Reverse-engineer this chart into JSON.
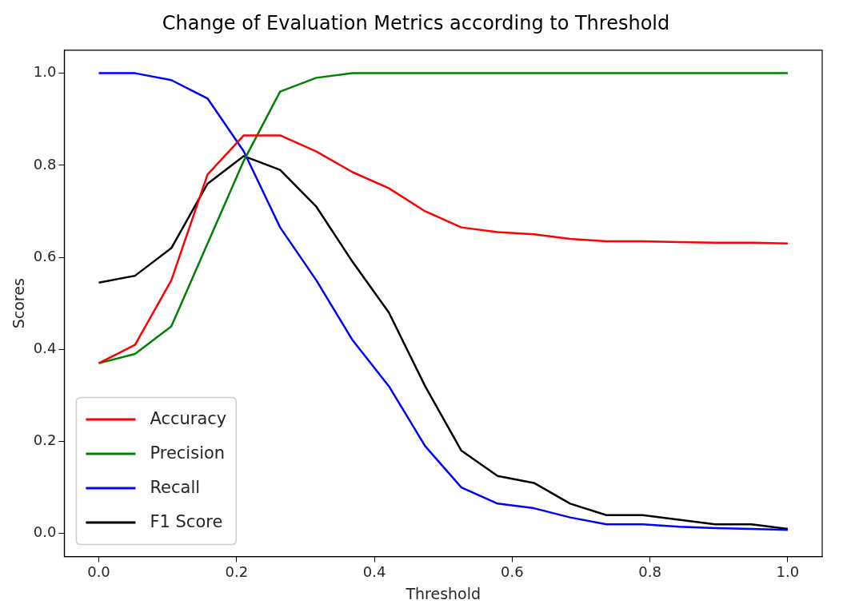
{
  "chart_data": {
    "type": "line",
    "title": "Change of Evaluation Metrics according to Threshold",
    "xlabel": "Threshold",
    "ylabel": "Scores",
    "x": [
      0,
      0.0526,
      0.1053,
      0.1579,
      0.2105,
      0.2632,
      0.3158,
      0.3684,
      0.4211,
      0.4737,
      0.5263,
      0.5789,
      0.6316,
      0.6842,
      0.7368,
      0.7895,
      0.8421,
      0.8947,
      0.9474,
      1
    ],
    "series": [
      {
        "name": "Accuracy",
        "color": "#ff0000",
        "values": [
          0.37,
          0.41,
          0.55,
          0.78,
          0.865,
          0.865,
          0.83,
          0.785,
          0.75,
          0.7,
          0.665,
          0.655,
          0.65,
          0.64,
          0.635,
          0.635,
          0.633,
          0.632,
          0.632,
          0.63
        ]
      },
      {
        "name": "Precision",
        "color": "#008000",
        "values": [
          0.37,
          0.39,
          0.45,
          0.63,
          0.81,
          0.96,
          0.99,
          1,
          1,
          1,
          1,
          1,
          1,
          1,
          1,
          1,
          1,
          1,
          1,
          1
        ]
      },
      {
        "name": "Recall",
        "color": "#0000ff",
        "values": [
          1,
          1,
          0.985,
          0.945,
          0.83,
          0.665,
          0.55,
          0.42,
          0.32,
          0.19,
          0.1,
          0.065,
          0.055,
          0.035,
          0.02,
          0.02,
          0.015,
          0.012,
          0.01,
          0.008
        ]
      },
      {
        "name": "F1 Score",
        "color": "#000000",
        "values": [
          0.545,
          0.56,
          0.62,
          0.76,
          0.82,
          0.79,
          0.71,
          0.59,
          0.48,
          0.32,
          0.18,
          0.125,
          0.11,
          0.065,
          0.04,
          0.04,
          0.03,
          0.02,
          0.02,
          0.01
        ]
      }
    ],
    "xlim": [
      -0.05,
      1.05
    ],
    "xticks": [
      {
        "value": 0,
        "label": "0.0"
      },
      0.2,
      0.4,
      0.6,
      0.8,
      {
        "value": 1,
        "label": "1.0"
      }
    ],
    "ylim": [
      -0.05,
      1.05
    ],
    "yticks": [
      {
        "value": 0,
        "label": "0.0"
      },
      0.2,
      0.4,
      0.6,
      0.8,
      {
        "value": 1,
        "label": "1.0"
      }
    ],
    "grid": false,
    "legend": "bottom left",
    "marker": "none",
    "line_style": "solid"
  }
}
